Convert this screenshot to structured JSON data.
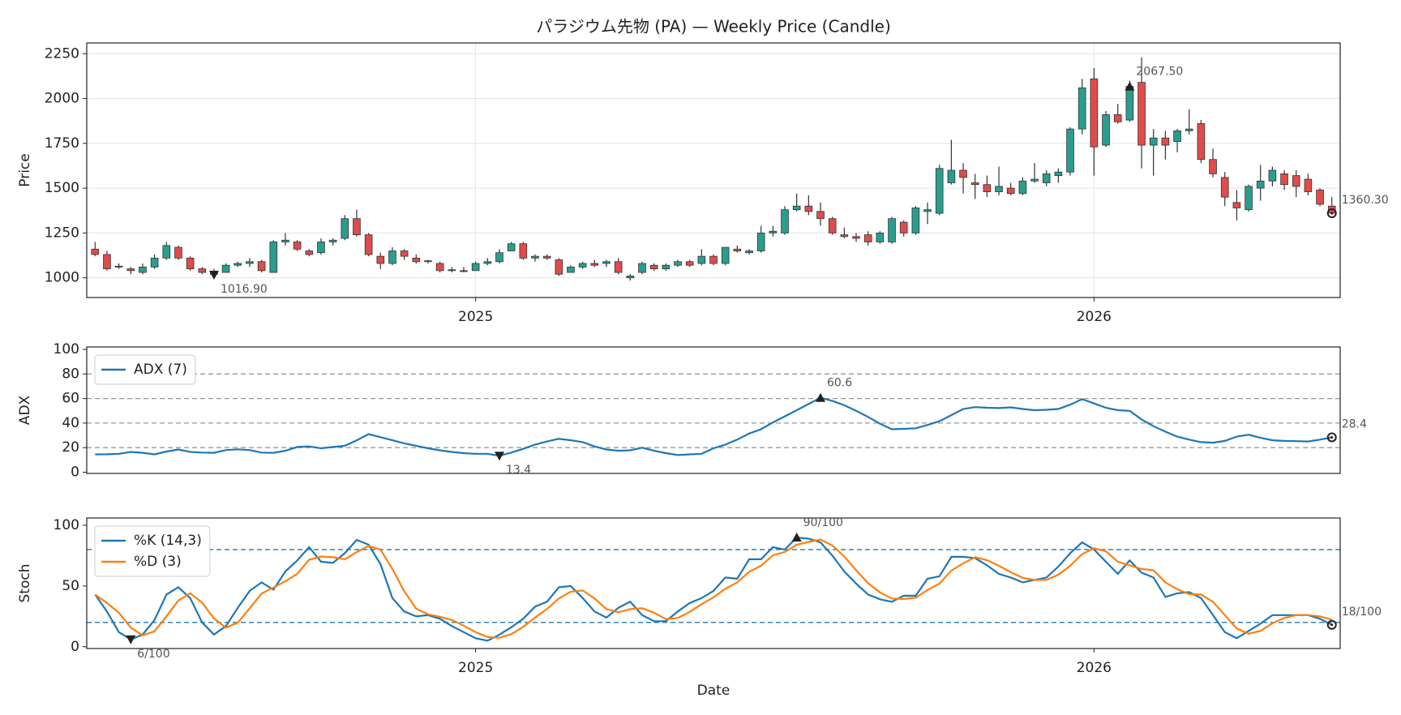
{
  "chart_data": [
    {
      "type": "candlestick",
      "title": "パラジウム先物 (PA) — Weekly Price (Candle)",
      "ylabel": "Price",
      "x": [
        0,
        1,
        2,
        3,
        4,
        5,
        6,
        7,
        8,
        9,
        10,
        11,
        12,
        13,
        14,
        15,
        16,
        17,
        18,
        19,
        20,
        21,
        22,
        23,
        24,
        25,
        26,
        27,
        28,
        29,
        30,
        31,
        32,
        33,
        34,
        35,
        36,
        37,
        38,
        39,
        40,
        41,
        42,
        43,
        44,
        45,
        46,
        47,
        48,
        49,
        50,
        51,
        52,
        53,
        54,
        55,
        56,
        57,
        58,
        59,
        60,
        61,
        62,
        63,
        64,
        65,
        66,
        67,
        68,
        69,
        70,
        71,
        72,
        73,
        74,
        75,
        76,
        77,
        78,
        79,
        80,
        81,
        82,
        83,
        84,
        85,
        86,
        87,
        88,
        89,
        90,
        91,
        92,
        93,
        94,
        95,
        96,
        97,
        98,
        99,
        100,
        101,
        102,
        103,
        104
      ],
      "open": [
        1160,
        1130,
        1060,
        1050,
        1030,
        1060,
        1110,
        1170,
        1110,
        1050,
        1030,
        1030,
        1070,
        1080,
        1090,
        1030,
        1200,
        1200,
        1150,
        1140,
        1200,
        1220,
        1330,
        1240,
        1120,
        1080,
        1150,
        1110,
        1090,
        1080,
        1040,
        1040,
        1040,
        1080,
        1090,
        1150,
        1190,
        1110,
        1120,
        1100,
        1030,
        1060,
        1080,
        1080,
        1090,
        1000,
        1030,
        1070,
        1050,
        1070,
        1090,
        1080,
        1120,
        1080,
        1160,
        1140,
        1150,
        1250,
        1250,
        1380,
        1400,
        1370,
        1330,
        1240,
        1230,
        1240,
        1200,
        1200,
        1310,
        1250,
        1370,
        1360,
        1530,
        1600,
        1530,
        1520,
        1480,
        1500,
        1470,
        1540,
        1530,
        1570,
        1590,
        1830,
        2110,
        1740,
        1910,
        1880,
        2090,
        1740,
        1780,
        1760,
        1820,
        1860,
        1660,
        1560,
        1420,
        1380,
        1500,
        1540,
        1580,
        1570,
        1550,
        1490,
        1400
      ],
      "high": [
        1200,
        1150,
        1080,
        1060,
        1080,
        1130,
        1200,
        1180,
        1120,
        1060,
        1050,
        1080,
        1090,
        1110,
        1100,
        1210,
        1250,
        1210,
        1160,
        1220,
        1220,
        1350,
        1380,
        1250,
        1140,
        1170,
        1160,
        1130,
        1100,
        1090,
        1060,
        1060,
        1090,
        1110,
        1160,
        1200,
        1200,
        1130,
        1130,
        1110,
        1070,
        1090,
        1100,
        1100,
        1110,
        1020,
        1090,
        1080,
        1080,
        1100,
        1100,
        1160,
        1130,
        1170,
        1180,
        1160,
        1290,
        1290,
        1400,
        1470,
        1460,
        1420,
        1340,
        1280,
        1250,
        1260,
        1260,
        1340,
        1320,
        1400,
        1420,
        1630,
        1770,
        1640,
        1580,
        1570,
        1620,
        1530,
        1560,
        1640,
        1600,
        1610,
        1840,
        2110,
        2170,
        1930,
        1970,
        2100,
        2230,
        1830,
        1820,
        1830,
        1940,
        1880,
        1720,
        1590,
        1490,
        1520,
        1630,
        1620,
        1600,
        1600,
        1580,
        1500,
        1450
      ],
      "low": [
        1120,
        1040,
        1050,
        1020,
        1020,
        1050,
        1100,
        1100,
        1040,
        1020,
        1016.9,
        1030,
        1060,
        1060,
        1030,
        1030,
        1180,
        1150,
        1120,
        1130,
        1180,
        1210,
        1230,
        1120,
        1050,
        1070,
        1100,
        1080,
        1080,
        1030,
        1030,
        1030,
        1040,
        1070,
        1080,
        1150,
        1100,
        1090,
        1100,
        1010,
        1030,
        1050,
        1060,
        1060,
        1020,
        985,
        1020,
        1040,
        1040,
        1060,
        1060,
        1070,
        1070,
        1070,
        1140,
        1130,
        1140,
        1230,
        1240,
        1370,
        1350,
        1290,
        1240,
        1220,
        1200,
        1180,
        1190,
        1190,
        1230,
        1240,
        1300,
        1350,
        1520,
        1470,
        1440,
        1450,
        1460,
        1460,
        1460,
        1530,
        1510,
        1530,
        1570,
        1800,
        1570,
        1730,
        1860,
        1870,
        1610,
        1570,
        1660,
        1700,
        1800,
        1640,
        1560,
        1400,
        1320,
        1370,
        1430,
        1510,
        1490,
        1450,
        1460,
        1400,
        1350
      ],
      "close": [
        1130,
        1050,
        1065,
        1040,
        1060,
        1110,
        1180,
        1110,
        1050,
        1030,
        1020,
        1070,
        1080,
        1090,
        1040,
        1200,
        1210,
        1160,
        1130,
        1200,
        1210,
        1330,
        1240,
        1130,
        1080,
        1150,
        1120,
        1090,
        1095,
        1040,
        1045,
        1035,
        1080,
        1090,
        1140,
        1190,
        1110,
        1120,
        1110,
        1020,
        1060,
        1080,
        1070,
        1090,
        1030,
        1010,
        1080,
        1050,
        1070,
        1090,
        1070,
        1120,
        1080,
        1170,
        1150,
        1150,
        1250,
        1260,
        1380,
        1400,
        1370,
        1330,
        1250,
        1230,
        1220,
        1200,
        1250,
        1330,
        1250,
        1390,
        1380,
        1610,
        1600,
        1560,
        1520,
        1480,
        1510,
        1470,
        1540,
        1550,
        1580,
        1590,
        1830,
        2060,
        1730,
        1910,
        1870,
        2067.5,
        1740,
        1780,
        1740,
        1820,
        1830,
        1660,
        1580,
        1450,
        1390,
        1510,
        1540,
        1600,
        1520,
        1510,
        1480,
        1410,
        1360.3
      ],
      "up_color": "#2a9d8f",
      "down_color": "#e04b4b",
      "xlim": [
        -0.7,
        104.7
      ],
      "xticks": [
        {
          "value": 32,
          "label": "2025"
        },
        {
          "value": 84,
          "label": "2026"
        }
      ],
      "ylim": [
        890,
        2310
      ],
      "yticks": [
        1000,
        1250,
        1500,
        1750,
        2000,
        2250
      ],
      "grid": true,
      "annotations": [
        {
          "x": 10,
          "value": 1016.9,
          "label": "1016.90",
          "marker": "down"
        },
        {
          "x": 87,
          "value": 2067.5,
          "label": "2067.50",
          "marker": "up"
        },
        {
          "x": 104,
          "value": 1360.3,
          "label": "1360.30",
          "marker": "circle"
        }
      ]
    },
    {
      "type": "line",
      "ylabel": "ADX",
      "x": [
        0,
        1,
        2,
        3,
        4,
        5,
        6,
        7,
        8,
        9,
        10,
        11,
        12,
        13,
        14,
        15,
        16,
        17,
        18,
        19,
        20,
        21,
        22,
        23,
        24,
        25,
        26,
        27,
        28,
        29,
        30,
        31,
        32,
        33,
        34,
        35,
        36,
        37,
        38,
        39,
        40,
        41,
        42,
        43,
        44,
        45,
        46,
        47,
        48,
        49,
        50,
        51,
        52,
        53,
        54,
        55,
        56,
        57,
        58,
        59,
        60,
        61,
        62,
        63,
        64,
        65,
        66,
        67,
        68,
        69,
        70,
        71,
        72,
        73,
        74,
        75,
        76,
        77,
        78,
        79,
        80,
        81,
        82,
        83,
        84,
        85,
        86,
        87,
        88,
        89,
        90,
        91,
        92,
        93,
        94,
        95,
        96,
        97,
        98,
        99,
        100,
        101,
        102,
        103,
        104
      ],
      "series": [
        {
          "name": "ADX (7)",
          "color": "#1f77b4",
          "values": [
            14.5,
            14.6,
            15,
            16.5,
            15.8,
            14.5,
            16.8,
            18.5,
            16.5,
            16,
            15.8,
            18,
            18.6,
            18,
            16,
            15.8,
            17.5,
            20.5,
            21,
            19.5,
            20.5,
            21.5,
            26,
            31,
            28.5,
            26,
            23.5,
            21.5,
            19.5,
            17.8,
            16.5,
            15.5,
            15,
            15,
            13.4,
            16,
            19,
            22.5,
            25,
            27.2,
            26,
            24.5,
            21,
            18.5,
            17.5,
            17.8,
            20,
            17.5,
            15.5,
            14,
            14.5,
            15,
            19.5,
            22.5,
            26.5,
            31.5,
            35,
            40.5,
            45.5,
            50.5,
            55.5,
            60.6,
            58,
            54.5,
            50,
            45,
            39.5,
            35,
            35.3,
            35.8,
            38.5,
            41.5,
            46.5,
            51.5,
            53,
            52.5,
            52.2,
            52.8,
            51.5,
            50.5,
            50.8,
            51.5,
            55,
            59.5,
            56,
            52.5,
            50.5,
            50,
            43,
            37.5,
            33,
            29,
            26.5,
            24.5,
            24,
            25.5,
            29,
            30.5,
            28,
            26,
            25.5,
            25.3,
            25,
            26.5,
            28.4
          ]
        }
      ],
      "xlim": [
        -0.7,
        104.7
      ],
      "ylim": [
        -1,
        102
      ],
      "yticks": [
        0,
        20,
        40,
        60,
        80,
        100
      ],
      "grid": false,
      "hlines": [
        20,
        40,
        60,
        80
      ],
      "hline_color": "#999999",
      "legend": "upper left",
      "annotations": [
        {
          "x": 34,
          "value": 13.4,
          "marker": "down"
        },
        {
          "x": 61,
          "value": 60.6,
          "marker": "up"
        },
        {
          "x": 104,
          "value": 28.4,
          "marker": "circle"
        }
      ]
    },
    {
      "type": "line",
      "ylabel": "Stoch",
      "xlabel": "Date",
      "x": [
        0,
        1,
        2,
        3,
        4,
        5,
        6,
        7,
        8,
        9,
        10,
        11,
        12,
        13,
        14,
        15,
        16,
        17,
        18,
        19,
        20,
        21,
        22,
        23,
        24,
        25,
        26,
        27,
        28,
        29,
        30,
        31,
        32,
        33,
        34,
        35,
        36,
        37,
        38,
        39,
        40,
        41,
        42,
        43,
        44,
        45,
        46,
        47,
        48,
        49,
        50,
        51,
        52,
        53,
        54,
        55,
        56,
        57,
        58,
        59,
        60,
        61,
        62,
        63,
        64,
        65,
        66,
        67,
        68,
        69,
        70,
        71,
        72,
        73,
        74,
        75,
        76,
        77,
        78,
        79,
        80,
        81,
        82,
        83,
        84,
        85,
        86,
        87,
        88,
        89,
        90,
        91,
        92,
        93,
        94,
        95,
        96,
        97,
        98,
        99,
        100,
        101,
        102,
        103,
        104
      ],
      "series": [
        {
          "name": "%K (14,3)",
          "color": "#1f77b4",
          "values": [
            43,
            29,
            12,
            6,
            10,
            22,
            43,
            49,
            40,
            20,
            10,
            17,
            32,
            46,
            53,
            47,
            62,
            71,
            82,
            70,
            69,
            77,
            88,
            84,
            68,
            40,
            29,
            25,
            26,
            23,
            17,
            12,
            7,
            5,
            10,
            16,
            23,
            33,
            37,
            49,
            50,
            40,
            29,
            24,
            32,
            37,
            26,
            21,
            21,
            29,
            36,
            40,
            46,
            57,
            56,
            72,
            72,
            82,
            80,
            90,
            89,
            86,
            75,
            62,
            52,
            43,
            39,
            37,
            42,
            42,
            56,
            58,
            74,
            74,
            73,
            67,
            60,
            57,
            53,
            55,
            57,
            66,
            77,
            86,
            80,
            70,
            60,
            71,
            61,
            57,
            41,
            44,
            45,
            40,
            26,
            12,
            7,
            13,
            19,
            26,
            26,
            26,
            26,
            23,
            18
          ]
        },
        {
          "name": "%D (3)",
          "color": "#ff7f0e",
          "values": [
            43,
            36,
            28,
            15.7,
            9.3,
            12.7,
            25,
            38,
            44,
            36.3,
            23.3,
            15.7,
            19.7,
            31.7,
            43.7,
            48.7,
            54,
            60,
            71.7,
            74.3,
            73.7,
            72,
            78,
            83,
            80,
            64,
            45.7,
            31.3,
            26.7,
            24.7,
            22,
            17.3,
            12,
            8,
            7.3,
            10.3,
            16.3,
            24,
            31,
            39.7,
            45.3,
            46.3,
            39.7,
            31,
            28.3,
            31,
            31.7,
            28,
            22.7,
            23.7,
            28.7,
            35,
            40.7,
            47.7,
            53,
            61.7,
            66.7,
            75.3,
            78,
            84,
            86.3,
            88.3,
            83.3,
            74.3,
            63,
            52.3,
            44.7,
            39.7,
            39.3,
            40.3,
            46.7,
            52,
            62.7,
            68.7,
            73.7,
            71.3,
            66.7,
            61.3,
            56.7,
            55,
            55,
            59.3,
            66.7,
            76.3,
            81,
            78.7,
            70,
            67,
            64,
            63,
            53,
            47.3,
            43.3,
            43,
            37,
            26,
            15,
            10.7,
            13,
            19.3,
            23.7,
            26,
            26,
            25,
            22.3
          ]
        }
      ],
      "xlim": [
        -0.7,
        104.7
      ],
      "xticks": [
        {
          "value": 32,
          "label": "2025"
        },
        {
          "value": 84,
          "label": "2026"
        }
      ],
      "ylim": [
        -1.5,
        106
      ],
      "yticks": [
        0,
        50,
        100
      ],
      "grid": false,
      "hlines": [
        20,
        80
      ],
      "hline_color": "#1f77b4",
      "legend": "upper left",
      "annotations": [
        {
          "x": 3,
          "value": 6,
          "label": "6/100",
          "marker": "down"
        },
        {
          "x": 59,
          "value": 90,
          "label": "90/100",
          "marker": "up"
        },
        {
          "x": 104,
          "value": 18,
          "label": "18/100",
          "marker": "circle"
        }
      ]
    }
  ]
}
